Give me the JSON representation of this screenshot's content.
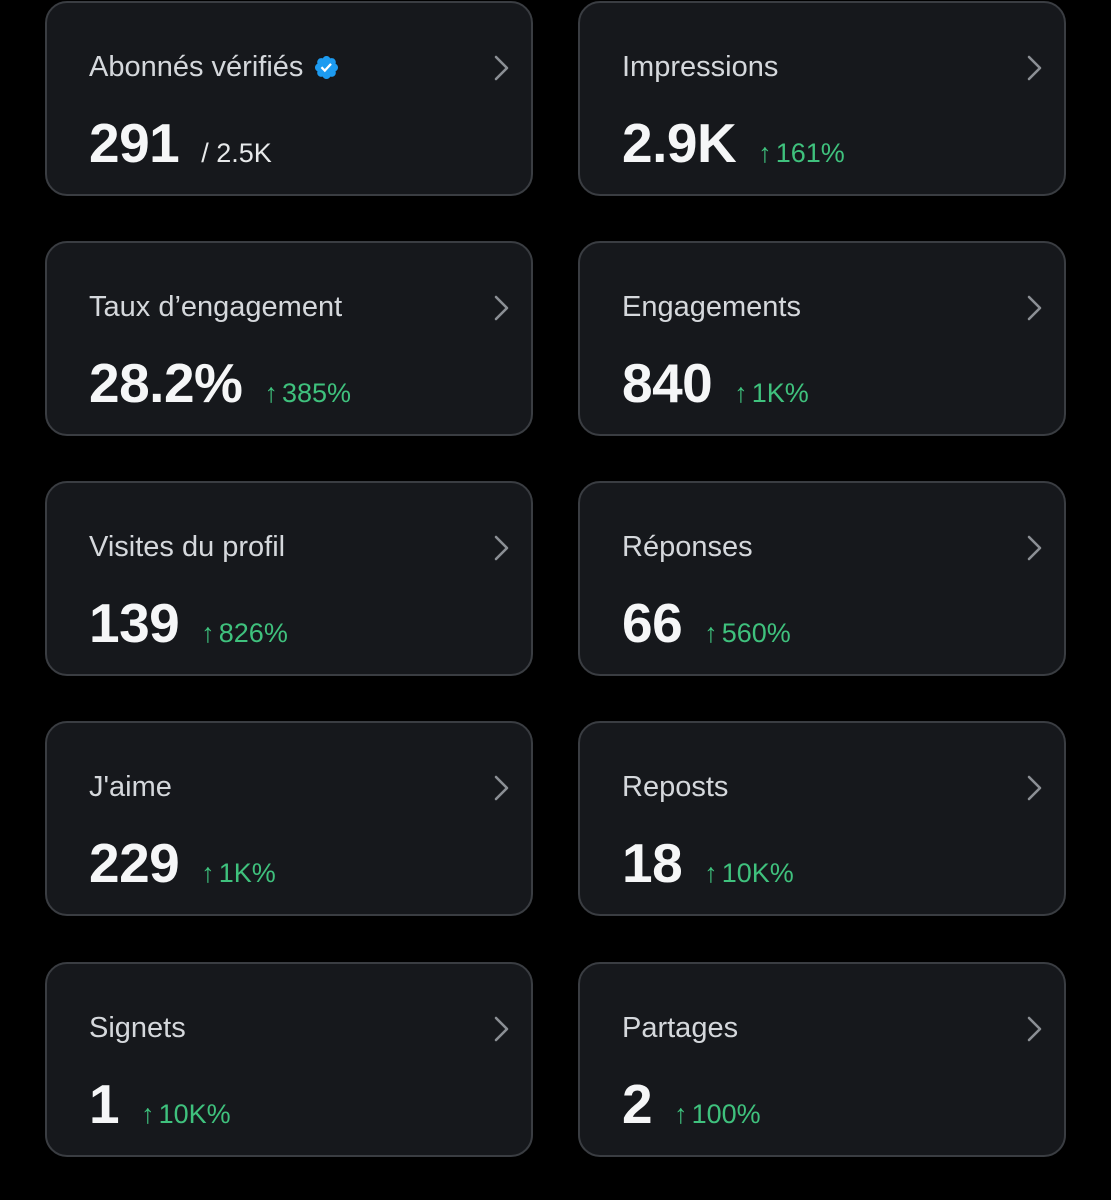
{
  "colors": {
    "background": "#000000",
    "card_background": "#16181c",
    "card_border": "#3a3d42",
    "positive_change": "#3fc17d",
    "verified_badge": "#1d9bf0"
  },
  "cards": [
    {
      "label": "Abonnés vérifiés",
      "value": "291",
      "sub": "/ 2.5K",
      "badge_icon": "verified-badge-icon"
    },
    {
      "label": "Impressions",
      "value": "2.9K",
      "change": "161%",
      "trend": "up"
    },
    {
      "label": "Taux d’engagement",
      "value": "28.2%",
      "change": "385%",
      "trend": "up"
    },
    {
      "label": "Engagements",
      "value": "840",
      "change": "1K%",
      "trend": "up"
    },
    {
      "label": "Visites du profil",
      "value": "139",
      "change": "826%",
      "trend": "up"
    },
    {
      "label": "Réponses",
      "value": "66",
      "change": "560%",
      "trend": "up"
    },
    {
      "label": "J'aime",
      "value": "229",
      "change": "1K%",
      "trend": "up"
    },
    {
      "label": "Reposts",
      "value": "18",
      "change": "10K%",
      "trend": "up"
    },
    {
      "label": "Signets",
      "value": "1",
      "change": "10K%",
      "trend": "up"
    },
    {
      "label": "Partages",
      "value": "2",
      "change": "100%",
      "trend": "up"
    }
  ],
  "icons": {
    "trend_up": "↑",
    "chevron": "chevron-right-icon"
  }
}
